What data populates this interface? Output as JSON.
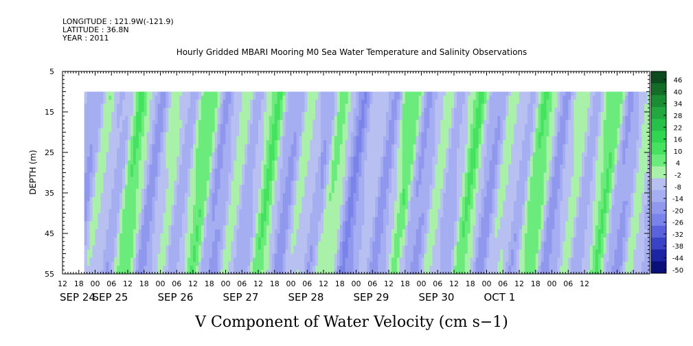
{
  "header": {
    "longitude": "LONGITUDE : 121.9W(-121.9)",
    "latitude": "LATITUDE : 36.8N",
    "year": "YEAR : 2011"
  },
  "chart_data": {
    "type": "heatmap",
    "title": "Hourly Gridded MBARI Mooring M0 Sea Water Temperature and Salinity Observations",
    "xlabel": "V Component of Water Velocity (cm s−1)",
    "ylabel": "DEPTH (m)",
    "ylim": [
      5,
      55
    ],
    "y_inverted": true,
    "y_ticks": [
      5,
      15,
      25,
      35,
      45,
      55
    ],
    "data_depth_range": [
      10,
      55
    ],
    "x_range_hours": [
      0,
      216
    ],
    "x_ticks_hour_labels": [
      "12",
      "18",
      "00",
      "06",
      "12",
      "18",
      "00",
      "06",
      "12",
      "18",
      "00",
      "06",
      "12",
      "18",
      "00",
      "06",
      "12",
      "18",
      "00",
      "06",
      "12",
      "18",
      "00",
      "06",
      "12",
      "18",
      "00",
      "06",
      "12",
      "18",
      "00",
      "06",
      "12"
    ],
    "x_date_labels": [
      {
        "label": "SEP 24",
        "day_start_hour": 0
      },
      {
        "label": "SEP 25",
        "day_start_hour": 12
      },
      {
        "label": "SEP 26",
        "day_start_hour": 36
      },
      {
        "label": "SEP 27",
        "day_start_hour": 60
      },
      {
        "label": "SEP 28",
        "day_start_hour": 84
      },
      {
        "label": "SEP 29",
        "day_start_hour": 108
      },
      {
        "label": "SEP 30",
        "day_start_hour": 132
      },
      {
        "label": "OCT  1",
        "day_start_hour": 156
      }
    ],
    "data_start_hour": 8,
    "colorbar": {
      "levels": [
        46,
        40,
        34,
        28,
        22,
        16,
        10,
        4,
        -2,
        -8,
        -14,
        -20,
        -26,
        -32,
        -38,
        -44,
        -50
      ],
      "colors": [
        "#0b4a1a",
        "#136d27",
        "#1a8d33",
        "#21a83e",
        "#26c148",
        "#2fd650",
        "#45e25f",
        "#6ceb7d",
        "#a9f0a9",
        "#b8c0f2",
        "#a5aef0",
        "#9098ee",
        "#7a83ea",
        "#5a63dd",
        "#3a42c6",
        "#1d24a4",
        "#0b0f7a"
      ]
    }
  }
}
